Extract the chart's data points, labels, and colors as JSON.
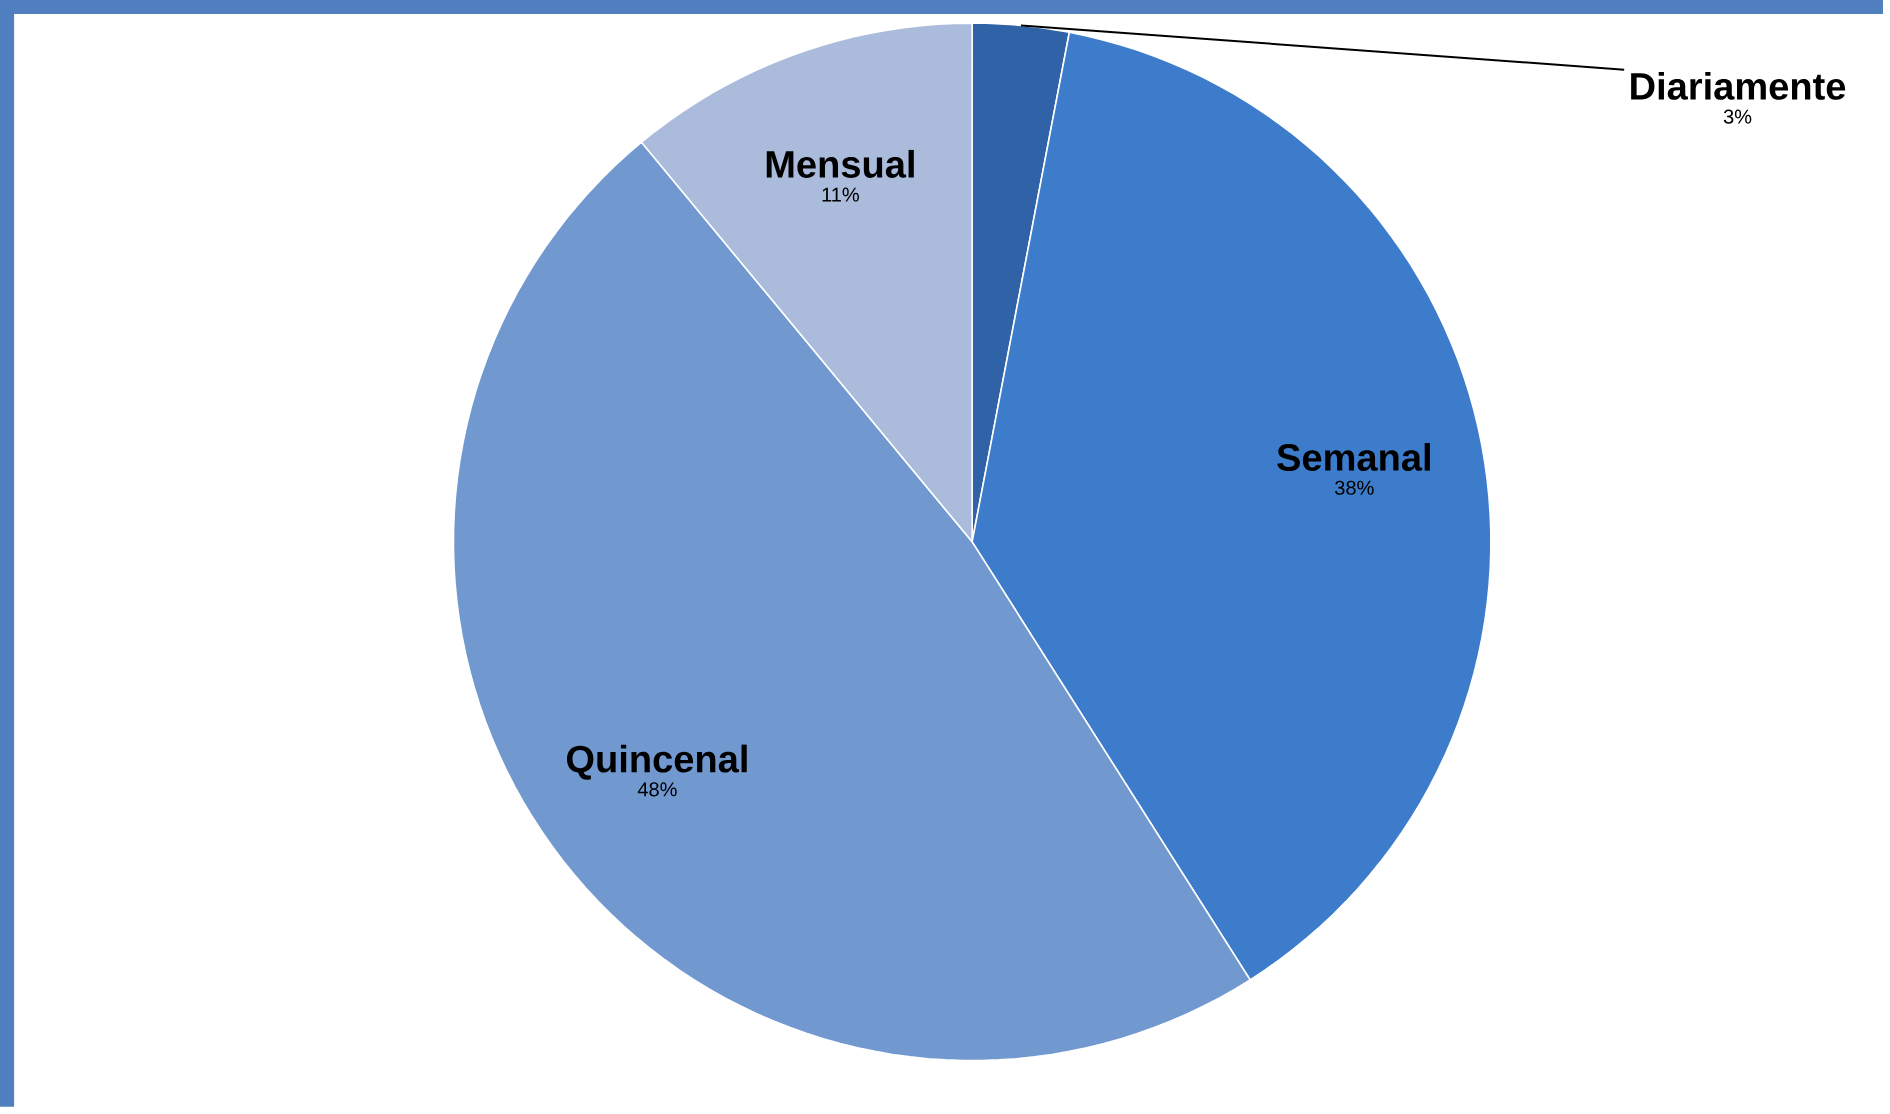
{
  "chart_data": {
    "type": "pie",
    "categories": [
      "Diariamente",
      "Semanal",
      "Quincenal",
      "Mensual"
    ],
    "values": [
      3,
      38,
      48,
      11
    ],
    "colors": [
      "#2f62a6",
      "#3d7bcb",
      "#7199d0",
      "#abbbdb"
    ],
    "value_labels": [
      "3%",
      "38%",
      "48%",
      "11%"
    ]
  }
}
